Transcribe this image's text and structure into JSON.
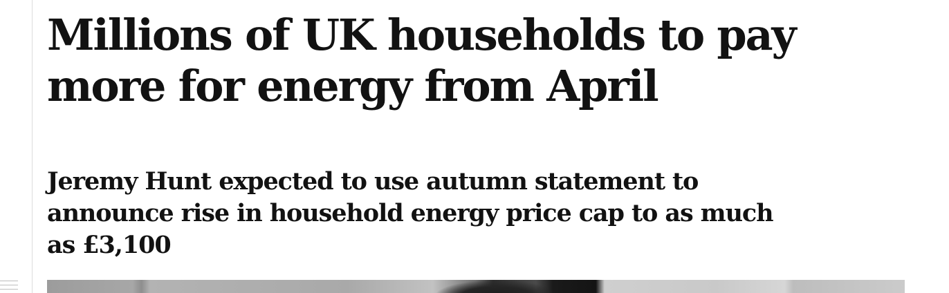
{
  "article": {
    "headline": "Millions of UK households to pay more for energy from April",
    "standfirst": "Jeremy Hunt expected to use autumn statement to announce rise in household energy price cap to as much as £3,100"
  },
  "colors": {
    "text": "#121212",
    "background": "#ffffff",
    "rule": "#dcdcdc"
  },
  "icons": {
    "menu": "hamburger-menu-icon"
  }
}
